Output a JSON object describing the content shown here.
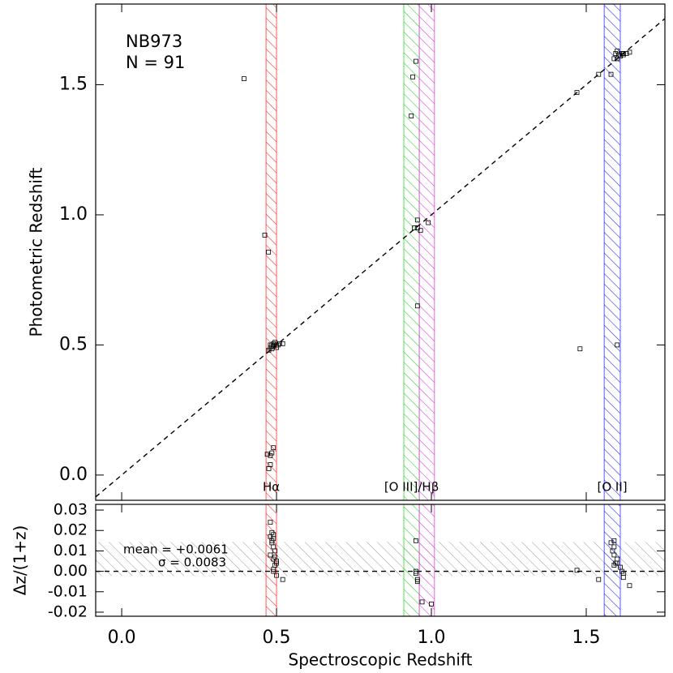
{
  "chart_data": [
    {
      "type": "scatter",
      "annotations": [
        "NB973",
        "N = 91"
      ],
      "ylabel": "Photometric Redshift",
      "xlim": [
        -0.084,
        1.754
      ],
      "ylim": [
        -0.097,
        1.81
      ],
      "xticks": [
        0,
        0.5,
        1,
        1.5
      ],
      "yticks": [
        {
          "value": 0,
          "label": "0.0"
        },
        {
          "value": 0.5,
          "label": "0.5"
        },
        {
          "value": 1,
          "label": "1.0"
        },
        {
          "value": 1.5,
          "label": "1.5"
        }
      ],
      "diagonal": true,
      "bands": [
        {
          "name": "Hα",
          "color": "#ff3030",
          "range": [
            0.466,
            0.5
          ]
        },
        {
          "name": "[O III]/Hβ",
          "color": "#30d830",
          "range": [
            0.911,
            0.961
          ]
        },
        {
          "color": "#e040e0",
          "range": [
            0.961,
            1.01
          ]
        },
        {
          "name": "[O II]",
          "color": "#3030ff",
          "range": [
            1.558,
            1.61
          ]
        }
      ],
      "color": "#000000",
      "x": [
        0.395,
        0.462,
        0.474,
        0.475,
        0.48,
        0.485,
        0.49,
        0.49,
        0.495,
        0.5,
        0.5,
        0.505,
        0.51,
        0.52,
        0.48,
        0.485,
        0.47,
        0.49,
        0.485,
        0.48,
        0.48,
        0.475,
        0.95,
        0.94,
        0.935,
        0.955,
        0.945,
        0.955,
        0.965,
        0.99,
        0.955,
        1.47,
        1.54,
        1.58,
        1.48,
        1.6,
        1.59,
        1.595,
        1.6,
        1.61,
        1.615,
        1.62,
        1.63,
        1.64,
        1.6,
        1.605,
        1.62
      ],
      "values": [
        1.523,
        0.922,
        0.857,
        0.48,
        0.49,
        0.5,
        0.505,
        0.495,
        0.51,
        0.5,
        0.49,
        0.5,
        0.505,
        0.505,
        0.5,
        0.485,
        0.08,
        0.105,
        0.085,
        0.075,
        0.04,
        0.025,
        1.59,
        1.53,
        1.38,
        0.98,
        0.95,
        0.95,
        0.94,
        0.97,
        0.65,
        1.47,
        1.54,
        1.54,
        0.485,
        0.5,
        1.6,
        1.62,
        1.63,
        1.61,
        1.62,
        1.615,
        1.62,
        1.625,
        1.6,
        1.615,
        1.62
      ]
    },
    {
      "type": "scatter",
      "ylabel": "Δz/(1+z)",
      "xlabel": "Spectroscopic Redshift",
      "annotations": [
        "mean = +0.0061",
        "σ = 0.0083"
      ],
      "mean": 0.0061,
      "sigma": 0.0083,
      "xlim": [
        -0.084,
        1.754
      ],
      "ylim": [
        -0.022,
        0.0328
      ],
      "xticks": [
        {
          "value": 0,
          "label": "0.0"
        },
        {
          "value": 0.5,
          "label": "0.5"
        },
        {
          "value": 1,
          "label": "1.0"
        },
        {
          "value": 1.5,
          "label": "1.5"
        }
      ],
      "yticks": [
        0.03,
        0.02,
        0.01,
        {
          "value": 0,
          "label": "0.00"
        },
        -0.01,
        -0.02
      ],
      "zero_line": true,
      "bands": [
        {
          "color": "#ff3030",
          "range": [
            0.466,
            0.5
          ]
        },
        {
          "color": "#30d830",
          "range": [
            0.911,
            0.961
          ]
        },
        {
          "color": "#e040e0",
          "range": [
            0.961,
            1.01
          ]
        },
        {
          "color": "#3030ff",
          "range": [
            1.558,
            1.61
          ]
        }
      ],
      "color": "#000000",
      "x": [
        0.48,
        0.485,
        0.49,
        0.49,
        0.485,
        0.49,
        0.495,
        0.48,
        0.49,
        0.5,
        0.495,
        0.49,
        0.5,
        0.52,
        0.485,
        0.48,
        0.495,
        0.5,
        0.49,
        0.95,
        0.95,
        0.955,
        0.955,
        0.97,
        1.0,
        0.95,
        1.47,
        1.54,
        1.58,
        1.59,
        1.59,
        1.585,
        1.59,
        1.595,
        1.59,
        1.6,
        1.61,
        1.615,
        1.62,
        1.62,
        1.64,
        1.6
      ],
      "values": [
        0.024,
        0.019,
        0.018,
        0.016,
        0.015,
        0.012,
        0.01,
        0.008,
        0.006,
        0.005,
        0.003,
        0.001,
        -0.002,
        -0.004,
        0.014,
        0.017,
        0.007,
        0.004,
        0.0,
        0.015,
        0.0,
        -0.004,
        -0.005,
        -0.015,
        -0.016,
        -0.001,
        0.0005,
        -0.004,
        0.014,
        0.015,
        0.012,
        0.01,
        0.008,
        0.004,
        0.003,
        0.004,
        0.002,
        0.0,
        -0.001,
        -0.003,
        -0.007,
        0.006
      ]
    }
  ]
}
